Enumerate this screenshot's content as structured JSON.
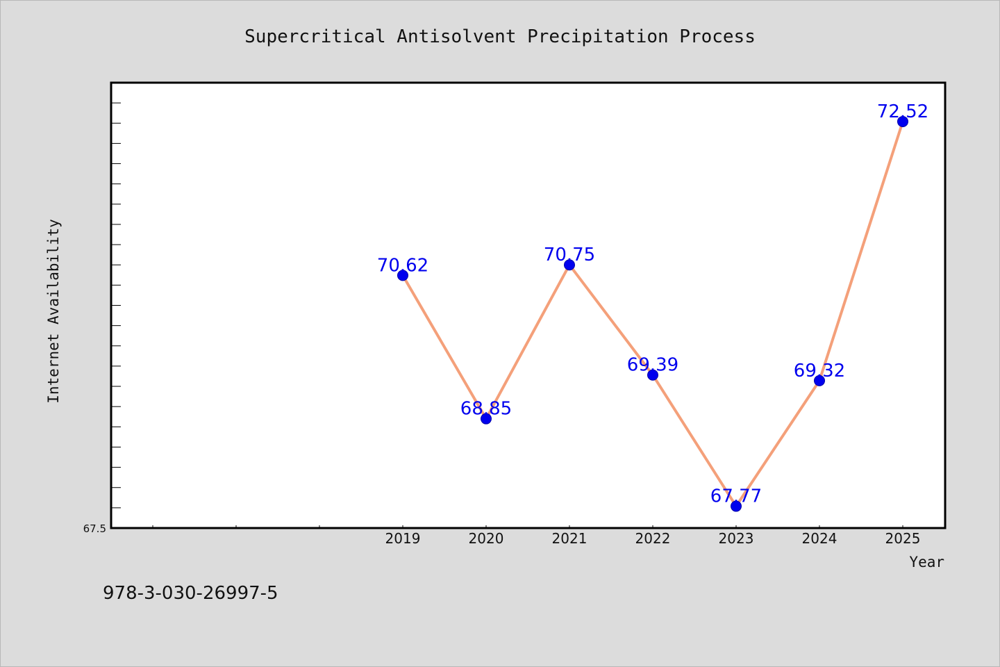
{
  "chart_data": {
    "type": "line",
    "title": "Supercritical Antisolvent Precipitation Process",
    "xlabel": "Year",
    "ylabel": "Internet Availability",
    "categories": [
      "2019",
      "2020",
      "2021",
      "2022",
      "2023",
      "2024",
      "2025"
    ],
    "values": [
      70.62,
      68.85,
      70.75,
      69.39,
      67.77,
      69.32,
      72.52
    ],
    "data_labels": [
      "70.62",
      "68.85",
      "70.75",
      "69.39",
      "67.77",
      "69.32",
      "72.52"
    ],
    "y_tick_label": "67.5",
    "ylim": [
      67.5,
      73.0
    ],
    "line_color": "#f4a07a",
    "marker_color": "#0000ee",
    "grid": false
  },
  "footnote": "978-3-030-26997-5"
}
